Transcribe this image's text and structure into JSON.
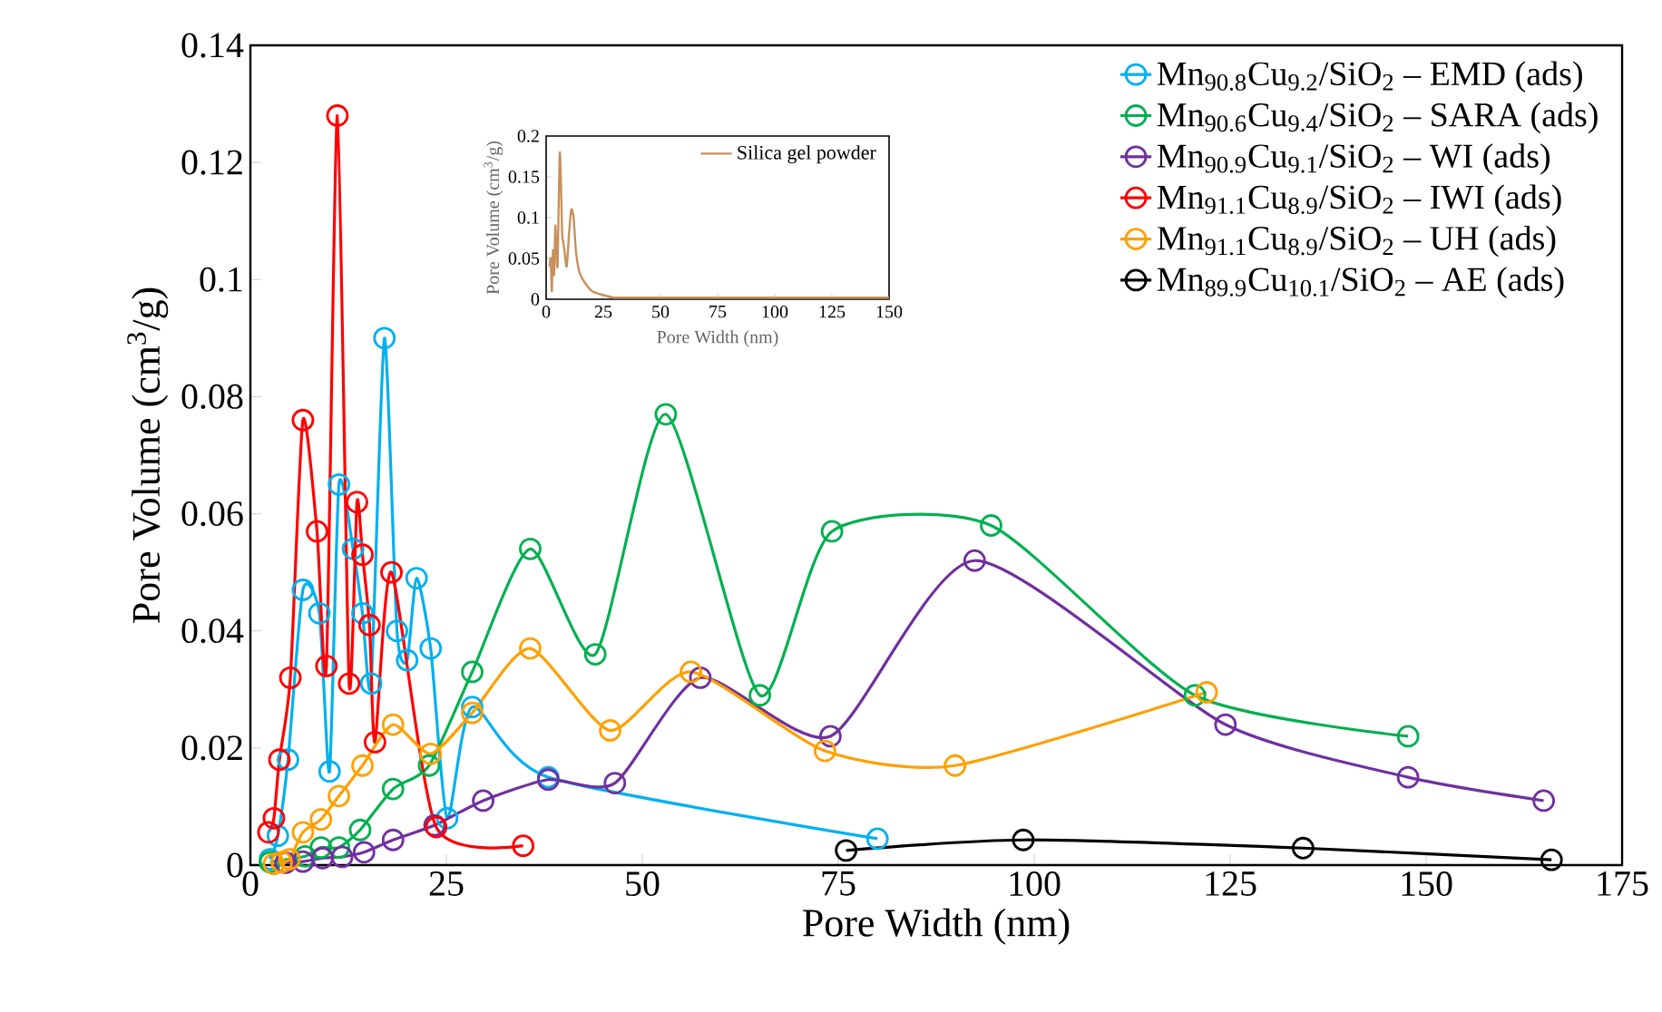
{
  "chart_data": [
    {
      "type": "line",
      "xlabel": "Pore Width (nm)",
      "ylabel": "Pore Volume (cm$^{3}$/g)",
      "xlim": [
        0,
        175
      ],
      "ylim": [
        0,
        0.14
      ],
      "xticks": [
        0,
        25,
        50,
        75,
        100,
        125,
        150,
        175
      ],
      "yticks": [
        0,
        0.02,
        0.04,
        0.06,
        0.08,
        0.1,
        0.12,
        0.14
      ],
      "marker": "circle",
      "legend": "top right",
      "series": [
        {
          "name": "Mn$_{90.8}$Cu$_{9.2}$/SiO$_{2}$ – EMD (ads)",
          "color": "#00b0f0",
          "x": [
            2.5,
            3.5,
            4.8,
            6.7,
            8.8,
            10.1,
            11.3,
            13.1,
            14.3,
            15.4,
            17.1,
            18.7,
            20,
            21.2,
            23,
            25.1,
            28.3,
            38,
            80
          ],
          "values": [
            0.001,
            0.005,
            0.018,
            0.047,
            0.043,
            0.016,
            0.065,
            0.054,
            0.043,
            0.031,
            0.09,
            0.04,
            0.035,
            0.049,
            0.037,
            0.008,
            0.027,
            0.015,
            0.0045
          ]
        },
        {
          "name": "Mn$_{90.6}$Cu$_{9.4}$/SiO$_{2}$ – SARA (ads)",
          "color": "#00b050",
          "x": [
            2.5,
            7,
            9,
            11.3,
            14,
            18.2,
            22.8,
            28.3,
            35.7,
            44,
            53,
            65,
            74.2,
            94.5,
            120.5,
            147.7
          ],
          "values": [
            0.0005,
            0.0015,
            0.003,
            0.003,
            0.006,
            0.013,
            0.017,
            0.033,
            0.054,
            0.036,
            0.077,
            0.029,
            0.057,
            0.058,
            0.029,
            0.022
          ]
        },
        {
          "name": "Mn$_{90.9}$Cu$_{9.1}$/SiO$_{2}$ – WI (ads)",
          "color": "#7030a0",
          "x": [
            4.5,
            6.7,
            9.2,
            11.7,
            14.5,
            18.2,
            23.5,
            29.7,
            38,
            46.5,
            57.4,
            74,
            92.4,
            124.4,
            147.7,
            165
          ],
          "values": [
            0.0004,
            0.0006,
            0.0012,
            0.0014,
            0.0022,
            0.0043,
            0.0068,
            0.011,
            0.0146,
            0.014,
            0.032,
            0.022,
            0.052,
            0.024,
            0.015,
            0.011
          ]
        },
        {
          "name": "Mn$_{91.1}$Cu$_{8.9}$/SiO$_{2}$ – IWI (ads)",
          "color": "#ff0000",
          "x": [
            2.3,
            3,
            3.7,
            5.1,
            6.7,
            8.5,
            9.7,
            11.1,
            12.6,
            13.6,
            14.3,
            15.2,
            15.9,
            18,
            23.7,
            34.8
          ],
          "values": [
            0.0056,
            0.008,
            0.018,
            0.032,
            0.076,
            0.057,
            0.034,
            0.128,
            0.031,
            0.062,
            0.053,
            0.041,
            0.021,
            0.05,
            0.0065,
            0.0033
          ]
        },
        {
          "name": "Mn$_{91.1}$Cu$_{8.9}$/SiO$_{2}$ – UH (ads)",
          "color": "#ffa000",
          "x": [
            3,
            4,
            5,
            6.7,
            9,
            11.3,
            14.3,
            18.2,
            23,
            28.3,
            35.7,
            45.9,
            56.2,
            73.3,
            89.9,
            122
          ],
          "values": [
            0.0002,
            0.0005,
            0.001,
            0.0056,
            0.0078,
            0.0118,
            0.017,
            0.024,
            0.019,
            0.026,
            0.037,
            0.023,
            0.033,
            0.0195,
            0.017,
            0.0295
          ]
        },
        {
          "name": "Mn$_{89.9}$Cu$_{10.1}$/SiO$_{2}$ – AE (ads)",
          "color": "#000000",
          "x": [
            76,
            98.6,
            134.3,
            166
          ],
          "values": [
            0.0025,
            0.0043,
            0.0029,
            0.0009
          ]
        }
      ]
    },
    {
      "type": "line",
      "xlabel": "Pore Width (nm)",
      "ylabel": "Pore Volume (cm$^{3}$/g)",
      "xlim": [
        0,
        150
      ],
      "ylim": [
        0,
        0.2
      ],
      "xticks": [
        0,
        25,
        50,
        75,
        100,
        125,
        150
      ],
      "yticks": [
        0,
        0.05,
        0.1,
        0.15,
        0.2
      ],
      "legend": "top right",
      "series": [
        {
          "name": "Silica gel powder",
          "color": "#c8905c",
          "x": [
            1.5,
            2,
            2.5,
            3,
            3.5,
            4,
            4.5,
            5,
            5.5,
            6,
            6.5,
            7,
            7.5,
            8,
            9,
            10,
            11,
            12,
            13,
            14,
            15,
            17,
            20,
            25,
            30,
            40,
            60,
            100,
            150
          ],
          "values": [
            0.04,
            0.05,
            0.01,
            0.06,
            0.03,
            0.09,
            0.06,
            0.04,
            0.12,
            0.18,
            0.14,
            0.08,
            0.07,
            0.06,
            0.04,
            0.08,
            0.11,
            0.1,
            0.06,
            0.04,
            0.03,
            0.02,
            0.01,
            0.005,
            0.002,
            0.002,
            0.002,
            0.002,
            0.002
          ]
        }
      ]
    }
  ]
}
